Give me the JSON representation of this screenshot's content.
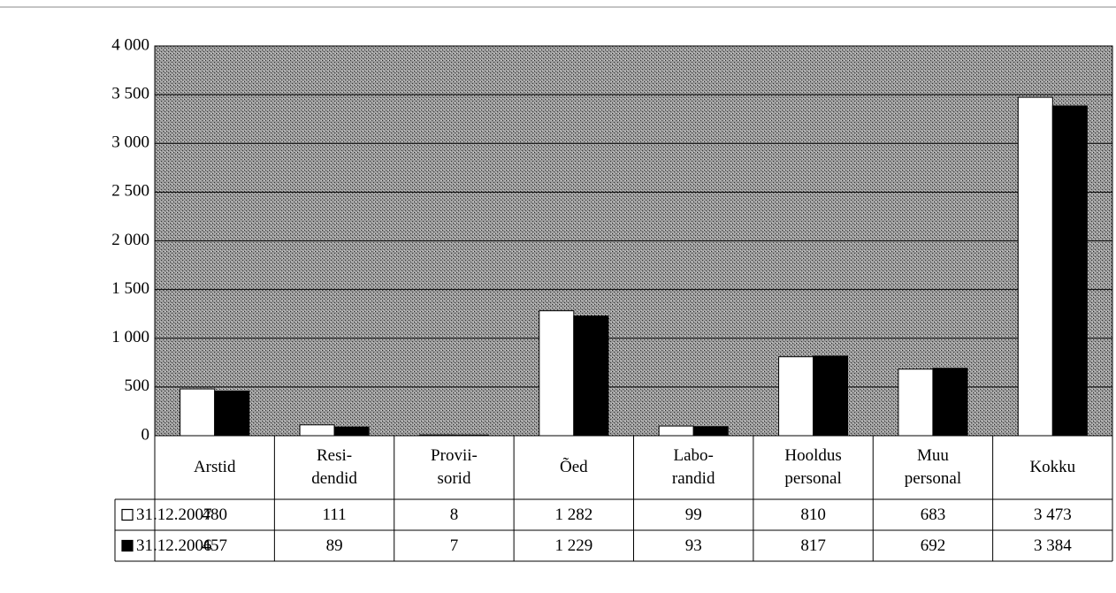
{
  "chart_data": {
    "type": "bar",
    "categories": [
      "Arstid",
      "Resi-\ndendid",
      "Provii-\nsorid",
      "Õed",
      "Labo-\nrandid",
      "Hooldus\npersonal",
      "Muu\npersonal",
      "Kokku"
    ],
    "series": [
      {
        "name": "31.12.2007",
        "color": "#ffffff",
        "values": [
          480,
          111,
          8,
          1282,
          99,
          810,
          683,
          3473
        ],
        "value_labels": [
          "480",
          "111",
          "8",
          "1 282",
          "99",
          "810",
          "683",
          "3 473"
        ]
      },
      {
        "name": "31.12.2006",
        "color": "#000000",
        "values": [
          457,
          89,
          7,
          1229,
          93,
          817,
          692,
          3384
        ],
        "value_labels": [
          "457",
          "89",
          "7",
          "1 229",
          "93",
          "817",
          "692",
          "3 384"
        ]
      }
    ],
    "ylim": [
      0,
      4000
    ],
    "yticks": [
      0,
      500,
      {
        "value": 1000,
        "label": "1 000"
      },
      {
        "value": 1500,
        "label": "1 500"
      },
      {
        "value": 2000,
        "label": "2 000"
      },
      {
        "value": 2500,
        "label": "2 500"
      },
      {
        "value": 3000,
        "label": "3 000"
      },
      {
        "value": 3500,
        "label": "3 500"
      },
      {
        "value": 4000,
        "label": "4 000"
      }
    ],
    "grid": true
  }
}
